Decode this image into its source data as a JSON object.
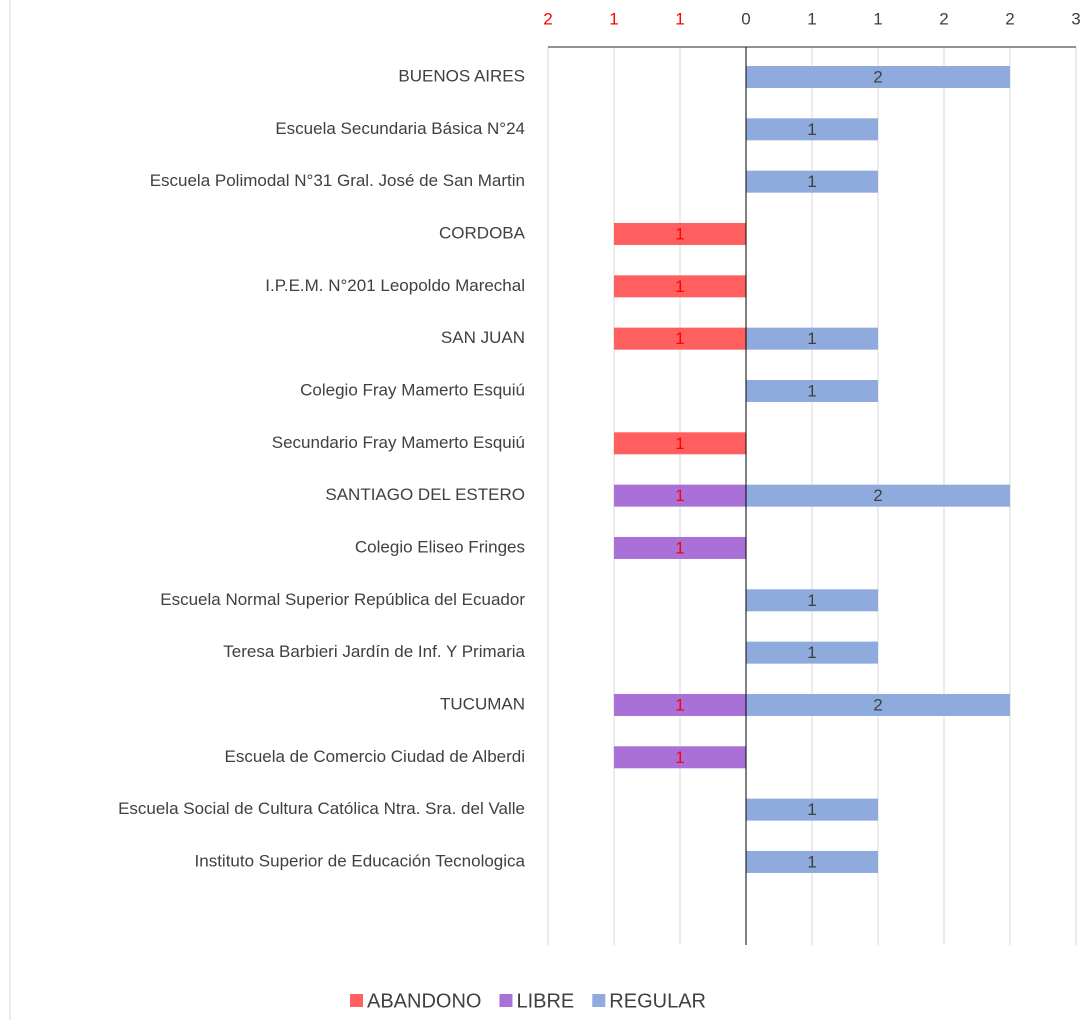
{
  "chart_data": {
    "type": "bar",
    "orientation": "horizontal",
    "stacked": true,
    "categories": [
      "BUENOS AIRES",
      "Escuela Secundaria Básica N°24",
      "Escuela Polimodal N°31 Gral. José de San Martin",
      "CORDOBA",
      "I.P.E.M. N°201 Leopoldo Marechal",
      "SAN JUAN",
      "Colegio Fray Mamerto Esquiú",
      "Secundario Fray Mamerto Esquiú",
      "SANTIAGO DEL ESTERO",
      "Colegio Eliseo Fringes",
      "Escuela Normal Superior República del Ecuador",
      "Teresa Barbieri Jardín de Inf. Y Primaria",
      "TUCUMAN",
      "Escuela de Comercio Ciudad de Alberdi",
      "Escuela Social de Cultura Católica Ntra. Sra. del Valle",
      "Instituto Superior de Educación Tecnologica"
    ],
    "series": [
      {
        "name": "ABANDONO",
        "color": "#ff5f5f",
        "label_color": "#ff0000",
        "values": [
          null,
          null,
          null,
          -1,
          -1,
          -1,
          null,
          -1,
          null,
          null,
          null,
          null,
          null,
          null,
          null,
          null
        ],
        "value_labels": [
          null,
          null,
          null,
          "1",
          "1",
          "1",
          null,
          "1",
          null,
          null,
          null,
          null,
          null,
          null,
          null,
          null
        ]
      },
      {
        "name": "LIBRE",
        "color": "#a970d8",
        "label_color": "#ff0000",
        "values": [
          null,
          null,
          null,
          null,
          null,
          null,
          null,
          null,
          -1,
          -1,
          null,
          null,
          -1,
          -1,
          null,
          null
        ],
        "value_labels": [
          null,
          null,
          null,
          null,
          null,
          null,
          null,
          null,
          "1",
          "1",
          null,
          null,
          "1",
          "1",
          null,
          null
        ]
      },
      {
        "name": "REGULAR",
        "color": "#8faadc",
        "label_color": "#404040",
        "values": [
          2,
          1,
          1,
          null,
          null,
          1,
          1,
          null,
          2,
          null,
          1,
          1,
          2,
          null,
          1,
          1
        ]
      }
    ],
    "xlim": [
      -1.5,
      2.5
    ],
    "xticks": [
      {
        "value": -1.5,
        "label": "2"
      },
      {
        "value": -1,
        "label": "1"
      },
      {
        "value": -0.5,
        "label": "1"
      },
      0,
      {
        "value": 0.5,
        "label": "1"
      },
      1,
      {
        "value": 1.5,
        "label": "2"
      },
      2,
      {
        "value": 2.5,
        "label": "3"
      }
    ],
    "negative_tick_color": "#ff0000",
    "grid": true,
    "legend": "bottom"
  }
}
